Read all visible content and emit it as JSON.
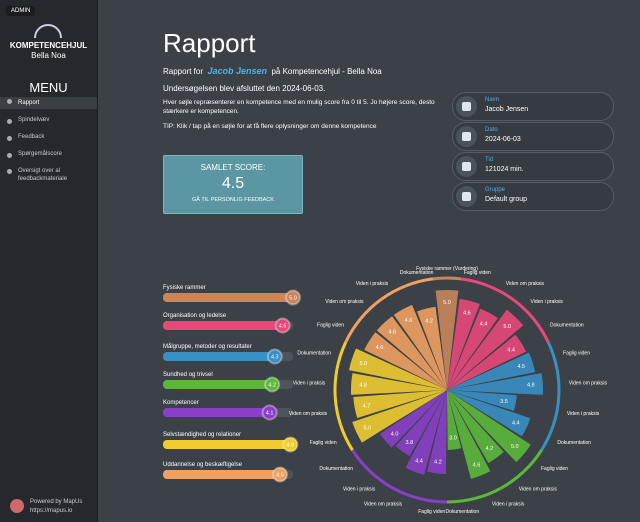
{
  "admin": "ADMIN",
  "logo": {
    "title": "KOMPETENCEHJUL",
    "subtitle": "Bella Noa"
  },
  "menu": {
    "title": "MENU",
    "items": [
      "Rapport",
      "Spindelvæv",
      "Feedback",
      "Spørgemålscore",
      "Oversigt over al feedbackmateriale"
    ]
  },
  "footer": {
    "powered": "Powered by MapUs",
    "url": "https://mapus.io"
  },
  "header": {
    "title": "Rapport",
    "intro_prefix": "Rapport for",
    "name": "Jacob Jensen",
    "intro_suffix": "på Kompetencehjul - Bella Noa",
    "completed": "Undersøgelsen blev afsluttet den 2024-06-03.",
    "description": "Hver søjle repræsenterer en kompetence med en mulig score fra 0 til 5. Jo højere score, desto stærkere er kompetencen.",
    "tip": "TIP: Klik / tap på en søjle for at få flere oplysninger om denne kompetence"
  },
  "score": {
    "label": "SAMLET SCORE:",
    "value": "4.5",
    "button": "GÅ TIL PERSONLIG FEEDBACK"
  },
  "info": [
    {
      "label": "Navn",
      "value": "Jacob Jensen"
    },
    {
      "label": "Dato",
      "value": "2024-06-03"
    },
    {
      "label": "Tid",
      "value": "121024 min."
    },
    {
      "label": "Gruppe",
      "value": "Default group"
    }
  ],
  "bars": {
    "xlim": [
      0,
      5
    ],
    "categories": [
      "Fysiske rammer",
      "Organisation og ledelse",
      "Målgruppe, metoder og resultater",
      "Sundhed og trivsel",
      "Kompetencer",
      "Selvstændighed og relationer",
      "Uddannelse og beskæftigelse"
    ],
    "colors": [
      "#c8865a",
      "#e8487a",
      "#3a8fc4",
      "#5cb83a",
      "#8a3fc8",
      "#f0cc30",
      "#f0a060"
    ],
    "values": [
      5,
      4.6,
      4.3,
      4.2,
      4.1,
      4.9,
      4.5
    ],
    "value_labels": [
      "5.0",
      "4.6",
      "4.3",
      "4.2",
      "4.1",
      "4.9",
      "4.5"
    ]
  },
  "wheel": {
    "rlim": [
      0,
      5
    ],
    "labels": [
      "Fysiske rammer (Vurdering)",
      "Faglig viden",
      "Viden om praksis",
      "Viden i praksis",
      "Dokumentation",
      "Faglig viden",
      "Viden om praksis",
      "Viden i praksis",
      "Dokumentation",
      "Faglig viden",
      "Viden om praksis",
      "Viden i praksis",
      "Dokumentation",
      "Faglig viden",
      "Viden om praksis",
      "Viden i praksis",
      "Dokumentation",
      "Faglig viden",
      "Viden om praksis",
      "Viden i praksis",
      "Dokumentation",
      "Faglig viden",
      "Viden om praksis",
      "Viden i praksis",
      "Dokumentation"
    ],
    "colors": [
      "#c8865a",
      "#e8487a",
      "#e8487a",
      "#e8487a",
      "#e8487a",
      "#3a8fc4",
      "#3a8fc4",
      "#3a8fc4",
      "#3a8fc4",
      "#5cb83a",
      "#5cb83a",
      "#5cb83a",
      "#5cb83a",
      "#8a3fc8",
      "#8a3fc8",
      "#8a3fc8",
      "#8a3fc8",
      "#f0cc30",
      "#f0cc30",
      "#f0cc30",
      "#f0cc30",
      "#f0a060",
      "#f0a060",
      "#f0a060",
      "#f0a060"
    ],
    "values": [
      5,
      4.6,
      4.4,
      5,
      4.4,
      4.5,
      4.8,
      3.5,
      4.4,
      5,
      4.2,
      4.6,
      3,
      4.2,
      4.4,
      3.8,
      4,
      5,
      4.7,
      4.8,
      5,
      4.6,
      4.6,
      4.6,
      4.2
    ],
    "value_labels": [
      "5.0",
      "4.6",
      "4.4",
      "5.0",
      "4.4",
      "4.5",
      "4.8",
      "3.5",
      "4.4",
      "5.0",
      "4.2",
      "4.6",
      "3.0",
      "4.2",
      "4.4",
      "3.8",
      "4.0",
      "5.0",
      "4.7",
      "4.8",
      "5.0",
      "4.6",
      "4.6",
      "4.6",
      "4.2"
    ]
  }
}
